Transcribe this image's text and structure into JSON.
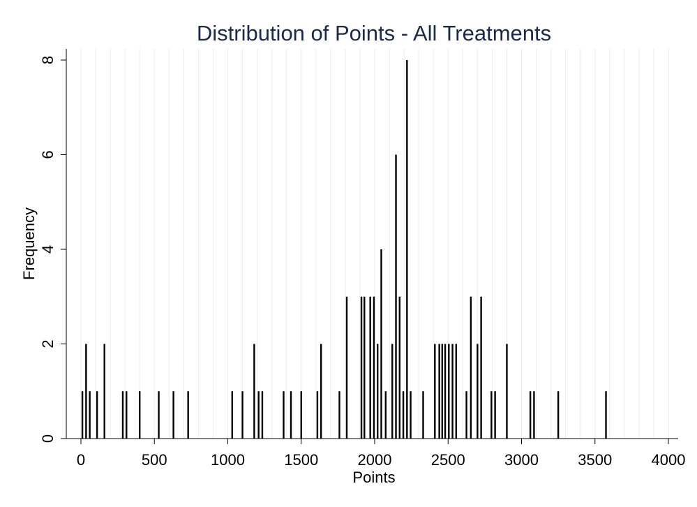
{
  "chart_data": {
    "type": "bar",
    "title": "Distribution of Points - All Treatments",
    "xlabel": "Points",
    "ylabel": "Frequency",
    "xlim": [
      0,
      4000
    ],
    "ylim": [
      0,
      8
    ],
    "xticks": [
      0,
      500,
      1000,
      1500,
      2000,
      2500,
      3000,
      3500,
      4000
    ],
    "yticks": [
      0,
      2,
      4,
      6,
      8
    ],
    "grid": "vertical",
    "legend": "none",
    "bar_color": "#000000",
    "grid_color": "#eeeeee",
    "x": [
      10,
      35,
      60,
      110,
      160,
      285,
      310,
      400,
      530,
      630,
      730,
      1030,
      1100,
      1180,
      1210,
      1235,
      1380,
      1430,
      1500,
      1610,
      1635,
      1760,
      1810,
      1910,
      1930,
      1970,
      1995,
      2020,
      2045,
      2075,
      2120,
      2145,
      2170,
      2195,
      2220,
      2245,
      2330,
      2410,
      2440,
      2460,
      2480,
      2505,
      2530,
      2555,
      2625,
      2655,
      2700,
      2725,
      2795,
      2820,
      2900,
      3060,
      3085,
      3250,
      3575
    ],
    "values": [
      1,
      2,
      1,
      1,
      2,
      1,
      1,
      1,
      1,
      1,
      1,
      1,
      1,
      2,
      1,
      1,
      1,
      1,
      1,
      1,
      2,
      1,
      3,
      3,
      3,
      3,
      3,
      2,
      4,
      1,
      2,
      6,
      3,
      1,
      8,
      1,
      1,
      2,
      2,
      2,
      2,
      2,
      2,
      2,
      1,
      3,
      2,
      3,
      1,
      1,
      2,
      1,
      1,
      1,
      1
    ]
  }
}
